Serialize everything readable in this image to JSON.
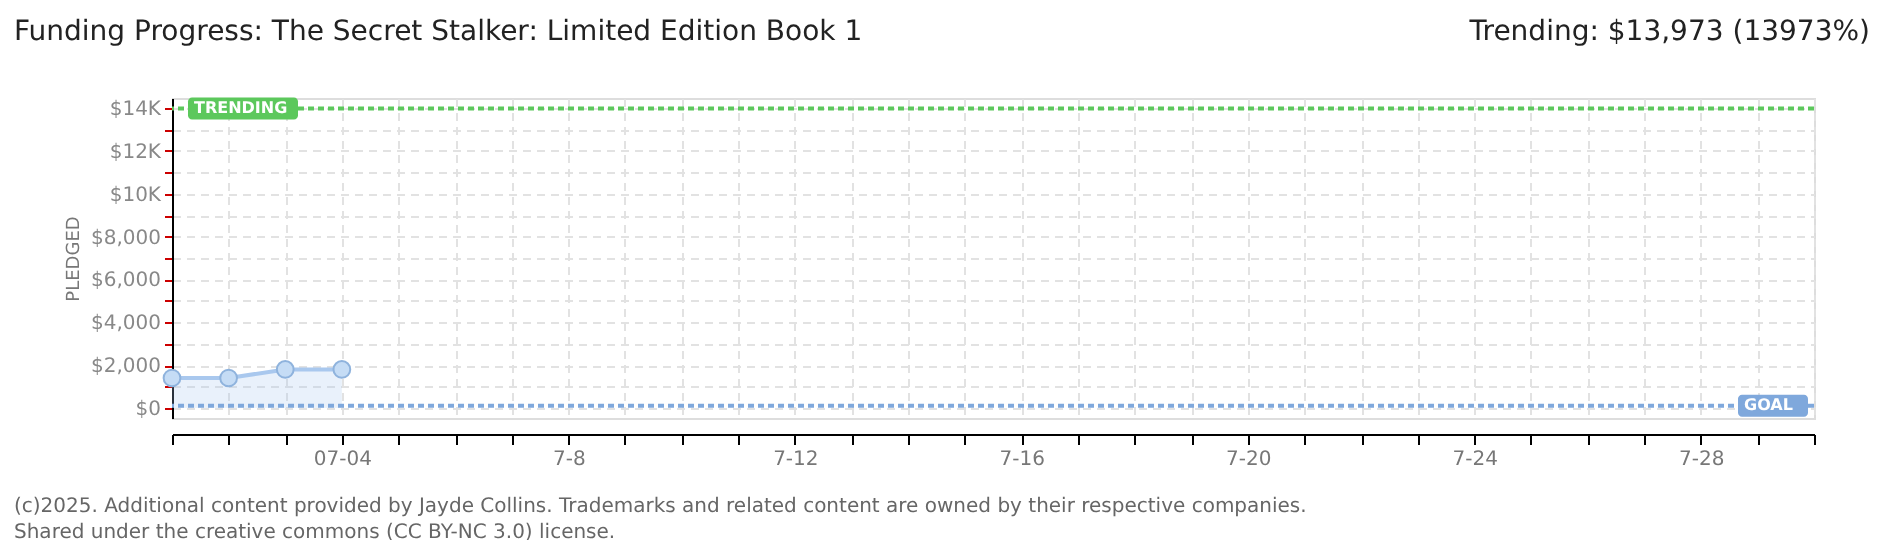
{
  "chart_data": {
    "type": "area",
    "title": "Funding Progress: The Secret Stalker: Limited Edition Book 1",
    "ylabel": "PLEDGED",
    "x": [
      "2025-07-01",
      "2025-07-02",
      "2025-07-03",
      "2025-07-04"
    ],
    "series": [
      {
        "color": "#a9c8ee",
        "values": [
          1400,
          1400,
          1800,
          1800
        ]
      }
    ],
    "marker": "circle",
    "grid": true,
    "xlim": [
      "2025-07-01",
      "2025-07-30"
    ],
    "xticks": [
      {
        "value": "2025-07-01",
        "label": null
      },
      {
        "value": "2025-07-02",
        "label": null
      },
      {
        "value": "2025-07-03",
        "label": null
      },
      {
        "value": "2025-07-04",
        "label": "07-04"
      },
      {
        "value": "2025-07-05",
        "label": null
      },
      {
        "value": "2025-07-06",
        "label": null
      },
      {
        "value": "2025-07-07",
        "label": null
      },
      {
        "value": "2025-07-08",
        "label": "7-8"
      },
      {
        "value": "2025-07-09",
        "label": null
      },
      {
        "value": "2025-07-10",
        "label": null
      },
      {
        "value": "2025-07-11",
        "label": null
      },
      {
        "value": "2025-07-12",
        "label": "7-12"
      },
      {
        "value": "2025-07-13",
        "label": null
      },
      {
        "value": "2025-07-14",
        "label": null
      },
      {
        "value": "2025-07-15",
        "label": null
      },
      {
        "value": "2025-07-16",
        "label": "7-16"
      },
      {
        "value": "2025-07-17",
        "label": null
      },
      {
        "value": "2025-07-18",
        "label": null
      },
      {
        "value": "2025-07-19",
        "label": null
      },
      {
        "value": "2025-07-20",
        "label": "7-20"
      },
      {
        "value": "2025-07-21",
        "label": null
      },
      {
        "value": "2025-07-22",
        "label": null
      },
      {
        "value": "2025-07-23",
        "label": null
      },
      {
        "value": "2025-07-24",
        "label": "7-24"
      },
      {
        "value": "2025-07-25",
        "label": null
      },
      {
        "value": "2025-07-26",
        "label": null
      },
      {
        "value": "2025-07-27",
        "label": null
      },
      {
        "value": "2025-07-28",
        "label": "7-28"
      },
      {
        "value": "2025-07-29",
        "label": null
      },
      {
        "value": "2025-07-30",
        "label": null
      }
    ],
    "ylim": [
      0,
      14000
    ],
    "yticks": [
      {
        "value": 0,
        "label": "$0"
      },
      {
        "value": 1000,
        "label": null
      },
      {
        "value": 2000,
        "label": "$2,000"
      },
      {
        "value": 3000,
        "label": null
      },
      {
        "value": 4000,
        "label": "$4,000"
      },
      {
        "value": 5000,
        "label": null
      },
      {
        "value": 6000,
        "label": "$6,000"
      },
      {
        "value": 7000,
        "label": null
      },
      {
        "value": 8000,
        "label": "$8,000"
      },
      {
        "value": 9000,
        "label": null
      },
      {
        "value": 10000,
        "label": "$10K"
      },
      {
        "value": 11000,
        "label": null
      },
      {
        "value": 12000,
        "label": "$12K"
      },
      {
        "value": 13000,
        "label": null
      },
      {
        "value": 14000,
        "label": "$14K"
      }
    ],
    "ref_lines": [
      {
        "axis": "y",
        "value": 13973,
        "label": "TRENDING",
        "color": "#5cc85c",
        "line_style": "dotted"
      },
      {
        "axis": "y",
        "value": 100,
        "label": "GOAL",
        "color": "#7fa8dc",
        "line_style": "dotted"
      }
    ],
    "annotations": [
      "Trending:  $13,973 (13973%)",
      "(c)2025. Additional content provided by Jayde Collins. Trademarks and related content are owned by their respective companies.",
      "Shared under the creative commons (CC BY-NC 3.0) license."
    ]
  }
}
